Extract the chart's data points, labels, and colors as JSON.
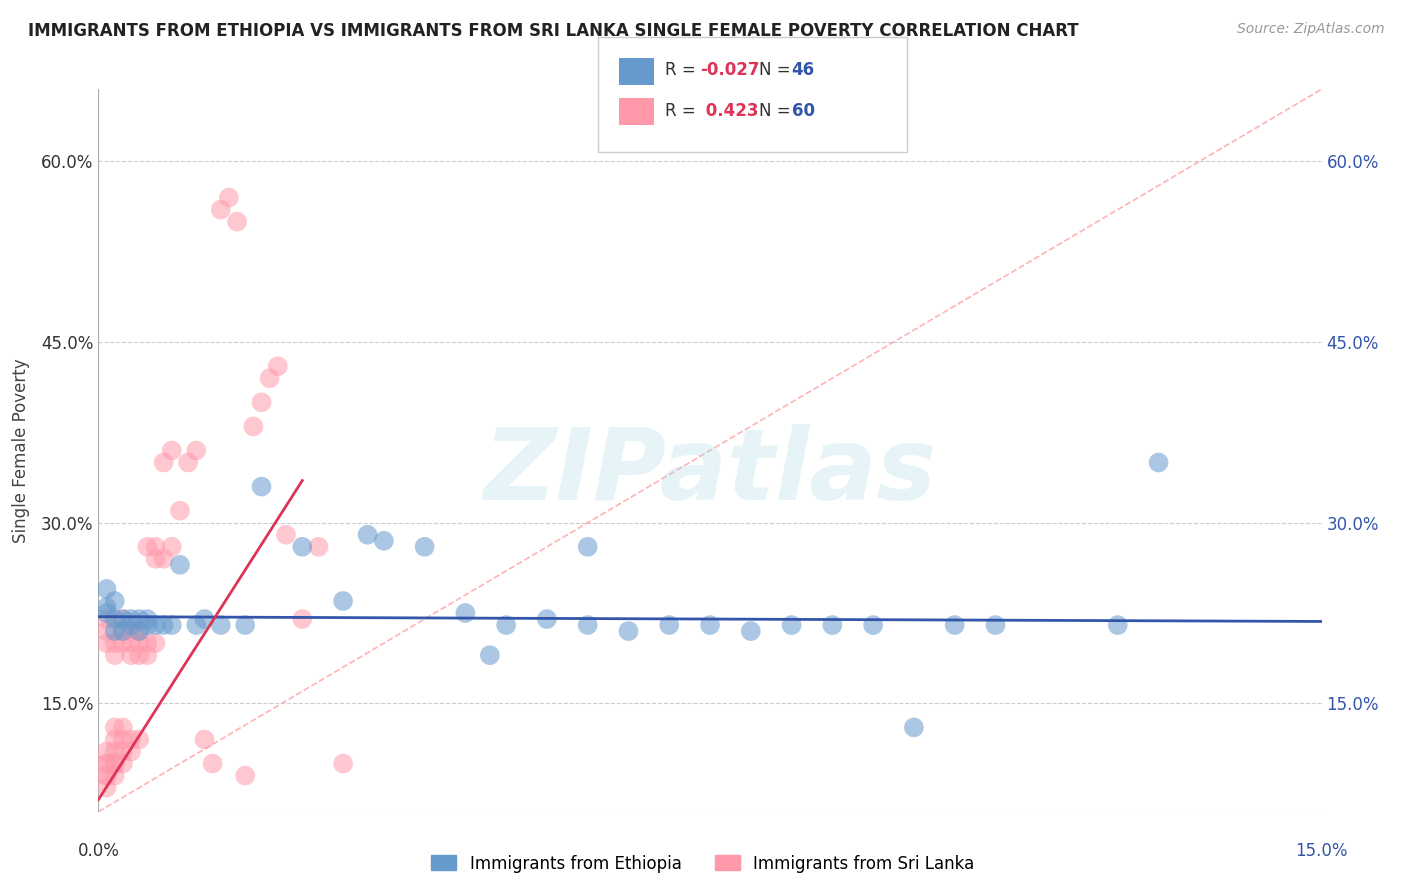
{
  "title": "IMMIGRANTS FROM ETHIOPIA VS IMMIGRANTS FROM SRI LANKA SINGLE FEMALE POVERTY CORRELATION CHART",
  "source": "Source: ZipAtlas.com",
  "ylabel": "Single Female Poverty",
  "xlim": [
    0.0,
    0.15
  ],
  "ylim": [
    0.06,
    0.66
  ],
  "yticks": [
    0.15,
    0.3,
    0.45,
    0.6
  ],
  "ytick_labels": [
    "15.0%",
    "30.0%",
    "45.0%",
    "60.0%"
  ],
  "xtick_labels_outer": [
    "0.0%",
    "15.0%"
  ],
  "legend_label1": "Immigrants from Ethiopia",
  "legend_label2": "Immigrants from Sri Lanka",
  "R1": -0.027,
  "N1": 46,
  "R2": 0.423,
  "N2": 60,
  "color_ethiopia": "#6699CC",
  "color_srilanka": "#FF99AA",
  "color_line_ethiopia": "#3355AA",
  "color_line_srilanka": "#DD3355",
  "color_diag": "#FFAAAA",
  "watermark": "ZIPatlas",
  "ethiopia_x": [
    0.001,
    0.001,
    0.001,
    0.002,
    0.002,
    0.002,
    0.003,
    0.003,
    0.004,
    0.004,
    0.005,
    0.005,
    0.006,
    0.006,
    0.007,
    0.008,
    0.009,
    0.01,
    0.012,
    0.013,
    0.015,
    0.018,
    0.02,
    0.025,
    0.03,
    0.033,
    0.035,
    0.04,
    0.045,
    0.048,
    0.05,
    0.055,
    0.06,
    0.06,
    0.065,
    0.07,
    0.075,
    0.08,
    0.085,
    0.09,
    0.095,
    0.1,
    0.105,
    0.11,
    0.125,
    0.13
  ],
  "ethiopia_y": [
    0.225,
    0.23,
    0.245,
    0.21,
    0.22,
    0.235,
    0.21,
    0.22,
    0.215,
    0.22,
    0.21,
    0.22,
    0.215,
    0.22,
    0.215,
    0.215,
    0.215,
    0.265,
    0.215,
    0.22,
    0.215,
    0.215,
    0.33,
    0.28,
    0.235,
    0.29,
    0.285,
    0.28,
    0.225,
    0.19,
    0.215,
    0.22,
    0.215,
    0.28,
    0.21,
    0.215,
    0.215,
    0.21,
    0.215,
    0.215,
    0.215,
    0.13,
    0.215,
    0.215,
    0.215,
    0.35
  ],
  "srilanka_x": [
    0.001,
    0.001,
    0.001,
    0.001,
    0.001,
    0.001,
    0.001,
    0.001,
    0.001,
    0.002,
    0.002,
    0.002,
    0.002,
    0.002,
    0.002,
    0.002,
    0.002,
    0.003,
    0.003,
    0.003,
    0.003,
    0.003,
    0.003,
    0.003,
    0.004,
    0.004,
    0.004,
    0.004,
    0.004,
    0.005,
    0.005,
    0.005,
    0.005,
    0.006,
    0.006,
    0.006,
    0.007,
    0.007,
    0.007,
    0.008,
    0.008,
    0.009,
    0.009,
    0.01,
    0.011,
    0.012,
    0.013,
    0.014,
    0.015,
    0.016,
    0.017,
    0.018,
    0.019,
    0.02,
    0.021,
    0.022,
    0.023,
    0.025,
    0.027,
    0.03
  ],
  "srilanka_y": [
    0.08,
    0.09,
    0.09,
    0.1,
    0.1,
    0.11,
    0.2,
    0.21,
    0.22,
    0.09,
    0.1,
    0.1,
    0.11,
    0.12,
    0.13,
    0.19,
    0.2,
    0.1,
    0.11,
    0.12,
    0.13,
    0.2,
    0.21,
    0.22,
    0.11,
    0.12,
    0.19,
    0.2,
    0.21,
    0.12,
    0.19,
    0.2,
    0.21,
    0.19,
    0.2,
    0.28,
    0.2,
    0.27,
    0.28,
    0.27,
    0.35,
    0.28,
    0.36,
    0.31,
    0.35,
    0.36,
    0.12,
    0.1,
    0.56,
    0.57,
    0.55,
    0.09,
    0.38,
    0.4,
    0.42,
    0.43,
    0.29,
    0.22,
    0.28,
    0.1
  ],
  "eth_line_x": [
    0.0,
    0.15
  ],
  "eth_line_y": [
    0.222,
    0.218
  ],
  "slk_line_x": [
    0.0,
    0.025
  ],
  "slk_line_y": [
    0.07,
    0.335
  ]
}
